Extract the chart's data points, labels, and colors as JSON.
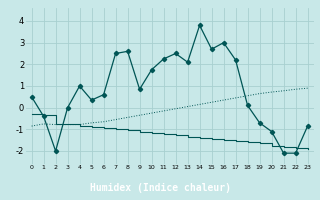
{
  "bg_color": "#c8e8e8",
  "plot_bg_color": "#c8e8e8",
  "grid_color": "#a8d0d0",
  "line_color": "#005555",
  "bottom_bar_color": "#3a8080",
  "xlabel": "Humidex (Indice chaleur)",
  "xlim": [
    -0.5,
    23.5
  ],
  "ylim": [
    -2.6,
    4.6
  ],
  "xticks": [
    0,
    1,
    2,
    3,
    4,
    5,
    6,
    7,
    8,
    9,
    10,
    11,
    12,
    13,
    14,
    15,
    16,
    17,
    18,
    19,
    20,
    21,
    22,
    23
  ],
  "yticks": [
    -2,
    -1,
    0,
    1,
    2,
    3,
    4
  ],
  "main_y": [
    0.5,
    -0.4,
    -2.0,
    0.0,
    1.0,
    0.35,
    0.6,
    2.5,
    2.6,
    0.85,
    1.75,
    2.25,
    2.5,
    2.1,
    3.8,
    2.7,
    3.0,
    2.2,
    0.1,
    -0.7,
    -1.1,
    -2.1,
    -2.1,
    -0.85
  ],
  "trend_up_y": [
    -0.85,
    -0.75,
    -0.78,
    -0.78,
    -0.78,
    -0.7,
    -0.65,
    -0.55,
    -0.45,
    -0.35,
    -0.25,
    -0.15,
    -0.05,
    0.05,
    0.15,
    0.25,
    0.35,
    0.45,
    0.55,
    0.65,
    0.72,
    0.78,
    0.85,
    0.9
  ],
  "trend_down_step_y": [
    -0.3,
    -0.35,
    -0.75,
    -0.75,
    -0.85,
    -0.9,
    -0.95,
    -1.0,
    -1.05,
    -1.1,
    -1.15,
    -1.2,
    -1.25,
    -1.35,
    -1.4,
    -1.45,
    -1.5,
    -1.55,
    -1.6,
    -1.65,
    -1.75,
    -1.8,
    -1.85,
    -1.92
  ],
  "xlabel_fontsize": 7,
  "tick_fontsize": 6
}
